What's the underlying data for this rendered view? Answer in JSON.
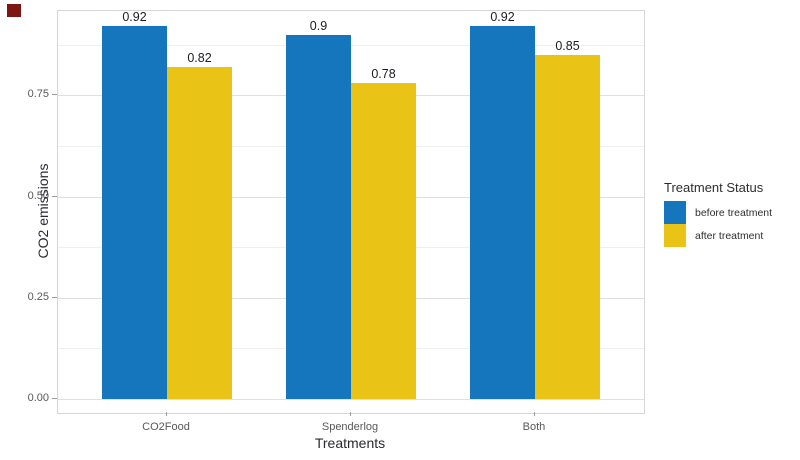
{
  "figure": {
    "background": "#ffffff",
    "record_marker_color": "#7d1513"
  },
  "chart_data": {
    "type": "bar",
    "title": "",
    "xlabel": "Treatments",
    "ylabel": "CO2 emissions",
    "categories": [
      "CO2Food",
      "Spenderlog",
      "Both"
    ],
    "series": [
      {
        "name": "before treatment",
        "color": "#1576be",
        "values": [
          0.92,
          0.9,
          0.92
        ],
        "value_labels": [
          "0.92",
          "0.9",
          "0.92"
        ]
      },
      {
        "name": "after treatment",
        "color": "#e9c417",
        "values": [
          0.82,
          0.78,
          0.85
        ],
        "value_labels": [
          "0.82",
          "0.78",
          "0.85"
        ]
      }
    ],
    "y_axis": {
      "ticks": [
        {
          "value": 0,
          "label": "0.00"
        },
        {
          "value": 0.25,
          "label": "0.25"
        },
        {
          "value": 0.5,
          "label": "0.50"
        },
        {
          "value": 0.75,
          "label": "0.75"
        }
      ],
      "minor_ticks": [
        0.125,
        0.375,
        0.625,
        0.875
      ],
      "range": [
        0,
        0.97
      ]
    },
    "legend": {
      "title": "Treatment Status",
      "position": "right"
    },
    "grid": {
      "horizontal_major": true,
      "horizontal_minor": true,
      "vertical": false
    }
  }
}
